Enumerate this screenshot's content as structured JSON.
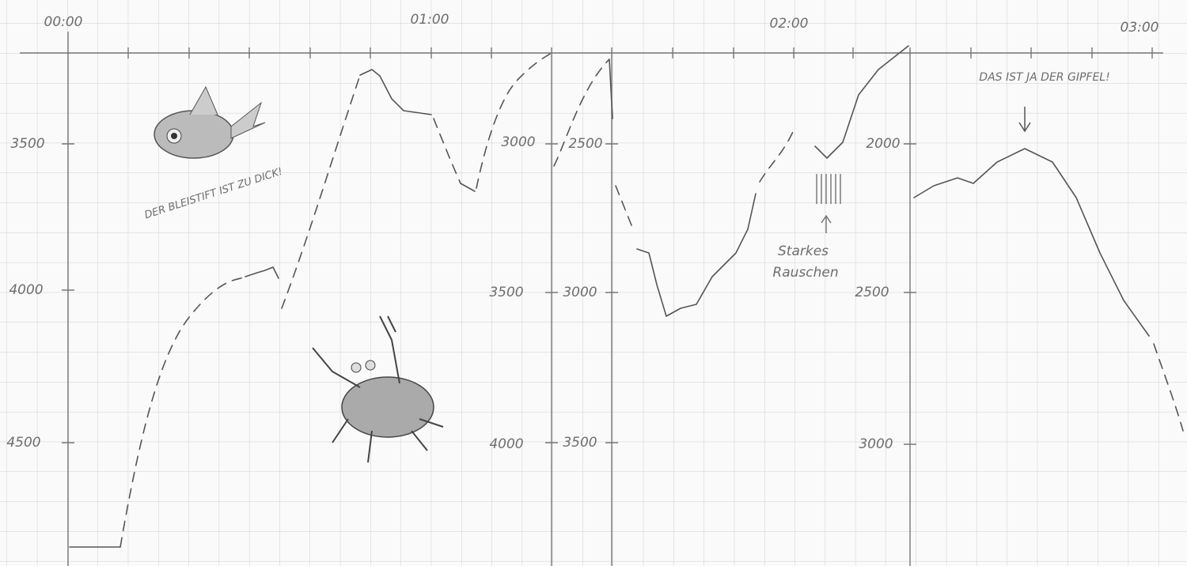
{
  "time_labels": [
    "00:00",
    "01:00",
    "02:00",
    "03:00"
  ],
  "depth_scales": [
    {
      "labels": [
        "3500",
        "4000",
        "4500"
      ]
    },
    {
      "labels": [
        "3000",
        "3500",
        "4000"
      ]
    },
    {
      "labels": [
        "2500",
        "3000",
        "3500"
      ]
    },
    {
      "labels": [
        "2000",
        "2500",
        "3000"
      ]
    }
  ],
  "annotations": {
    "pencil": "DER BLEISTIFT IST ZU DICK!",
    "noise": [
      "Starkes",
      "Rauschen"
    ],
    "peak": "DAS IST JA DER GIPFEL!"
  }
}
